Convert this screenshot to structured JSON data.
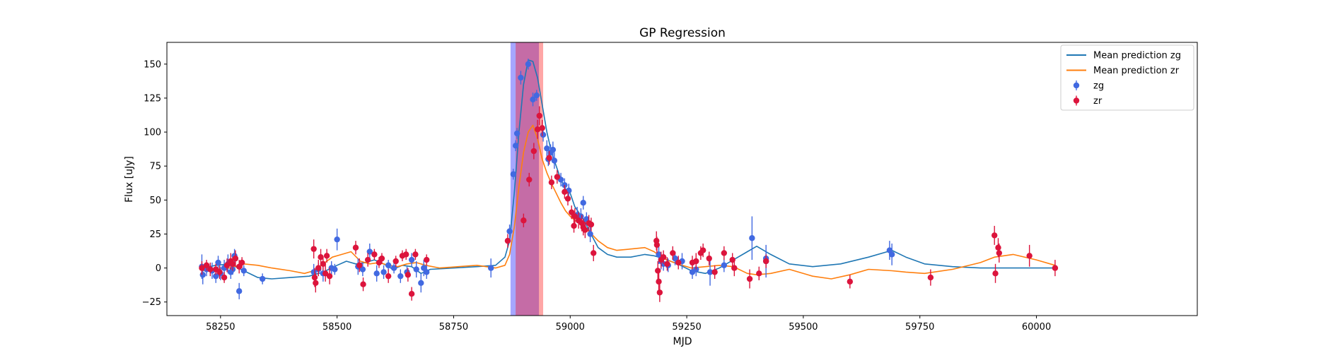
{
  "chart_data": {
    "type": "scatter",
    "title": "GP Regression",
    "xlabel": "MJD",
    "ylabel": "Flux [uJy]",
    "xlim": [
      58135,
      60345
    ],
    "ylim": [
      -35,
      166
    ],
    "xticks": [
      58250,
      58500,
      58750,
      59000,
      59250,
      59500,
      59750,
      60000
    ],
    "yticks": [
      -25,
      0,
      25,
      50,
      75,
      100,
      125,
      150
    ],
    "grid": false,
    "legend_position": "upper right",
    "shaded_regions": [
      {
        "series": "zg",
        "x": [
          58872,
          58933
        ],
        "color": "#0000ff",
        "opacity": 0.35
      },
      {
        "series": "zr",
        "x": [
          58883,
          58942
        ],
        "color": "#ff0000",
        "opacity": 0.35
      }
    ],
    "lines": [
      {
        "name": "Mean prediction zg",
        "color": "#1f77b4",
        "x": [
          58210,
          58240,
          58270,
          58300,
          58330,
          58360,
          58400,
          58440,
          58470,
          58500,
          58520,
          58540,
          58560,
          58580,
          58600,
          58620,
          58640,
          58660,
          58680,
          58700,
          58750,
          58800,
          58840,
          58860,
          58870,
          58880,
          58890,
          58900,
          58910,
          58920,
          58930,
          58940,
          58950,
          58960,
          58970,
          58980,
          58990,
          59000,
          59010,
          59020,
          59030,
          59040,
          59060,
          59080,
          59100,
          59130,
          59160,
          59180,
          59200,
          59230,
          59260,
          59290,
          59320,
          59350,
          59380,
          59400,
          59430,
          59470,
          59520,
          59580,
          59640,
          59690,
          59720,
          59760,
          59820,
          59880,
          59950,
          60010,
          60040
        ],
        "y": [
          0,
          2,
          3,
          -2,
          -7,
          -8,
          -7,
          -6,
          -3,
          2,
          5,
          3,
          4,
          6,
          3,
          -1,
          2,
          1,
          -4,
          -1,
          0,
          1,
          2,
          8,
          20,
          55,
          100,
          135,
          153,
          152,
          140,
          120,
          100,
          85,
          75,
          65,
          58,
          55,
          45,
          40,
          35,
          28,
          15,
          10,
          8,
          8,
          10,
          9,
          7,
          3,
          -2,
          -4,
          0,
          6,
          12,
          16,
          10,
          3,
          1,
          3,
          8,
          13,
          8,
          3,
          1,
          0,
          0,
          0,
          0
        ]
      },
      {
        "name": "Mean prediction zr",
        "color": "#ff7f0e",
        "x": [
          58210,
          58240,
          58270,
          58300,
          58330,
          58360,
          58400,
          58430,
          58450,
          58470,
          58490,
          58510,
          58530,
          58550,
          58570,
          58590,
          58610,
          58630,
          58650,
          58670,
          58690,
          58720,
          58760,
          58800,
          58840,
          58860,
          58870,
          58880,
          58890,
          58900,
          58910,
          58920,
          58930,
          58940,
          58950,
          58960,
          58970,
          58980,
          58990,
          59000,
          59010,
          59020,
          59030,
          59040,
          59060,
          59080,
          59100,
          59130,
          59160,
          59180,
          59200,
          59230,
          59260,
          59290,
          59320,
          59350,
          59380,
          59400,
          59430,
          59470,
          59520,
          59560,
          59600,
          59640,
          59690,
          59720,
          59760,
          59820,
          59880,
          59910,
          59950,
          60000,
          60040
        ],
        "y": [
          -2,
          -1,
          0,
          3,
          2,
          0,
          -2,
          -4,
          -2,
          3,
          8,
          10,
          12,
          5,
          3,
          4,
          2,
          1,
          3,
          4,
          2,
          0,
          1,
          2,
          0,
          2,
          10,
          30,
          60,
          85,
          100,
          105,
          95,
          80,
          70,
          62,
          55,
          48,
          42,
          38,
          35,
          33,
          30,
          27,
          20,
          15,
          13,
          14,
          15,
          12,
          7,
          3,
          0,
          1,
          2,
          1,
          -4,
          -5,
          -4,
          -1,
          -6,
          -8,
          -5,
          -1,
          -2,
          -3,
          -4,
          -1,
          4,
          8,
          10,
          6,
          2
        ]
      }
    ],
    "series": [
      {
        "name": "zg",
        "color": "#4169e1",
        "points": [
          [
            58210,
            1,
            9
          ],
          [
            58212,
            -5,
            7
          ],
          [
            58220,
            -1,
            5
          ],
          [
            58232,
            -2,
            6
          ],
          [
            58240,
            -6,
            5
          ],
          [
            58245,
            4,
            5
          ],
          [
            58250,
            -4,
            5
          ],
          [
            58258,
            0,
            6
          ],
          [
            58266,
            3,
            7
          ],
          [
            58272,
            -3,
            5
          ],
          [
            58276,
            -1,
            4
          ],
          [
            58280,
            9,
            5
          ],
          [
            58290,
            -17,
            6
          ],
          [
            58300,
            -2,
            4
          ],
          [
            58340,
            -8,
            4
          ],
          [
            58450,
            -3,
            6
          ],
          [
            58460,
            -1,
            5
          ],
          [
            58470,
            -4,
            6
          ],
          [
            58488,
            0,
            5
          ],
          [
            58495,
            -1,
            4
          ],
          [
            58500,
            21,
            8
          ],
          [
            58545,
            1,
            6
          ],
          [
            58555,
            -1,
            5
          ],
          [
            58570,
            12,
            6
          ],
          [
            58585,
            -4,
            6
          ],
          [
            58600,
            -3,
            5
          ],
          [
            58610,
            2,
            4
          ],
          [
            58622,
            0,
            4
          ],
          [
            58636,
            -6,
            5
          ],
          [
            58650,
            -3,
            4
          ],
          [
            58660,
            6,
            5
          ],
          [
            58670,
            -1,
            6
          ],
          [
            58680,
            -11,
            7
          ],
          [
            58686,
            0,
            6
          ],
          [
            58692,
            -3,
            5
          ],
          [
            58830,
            0,
            7
          ],
          [
            58870,
            27,
            5
          ],
          [
            58878,
            69,
            4
          ],
          [
            58883,
            90,
            4
          ],
          [
            58886,
            99,
            4
          ],
          [
            58894,
            140,
            5
          ],
          [
            58910,
            150,
            4
          ],
          [
            58920,
            124,
            5
          ],
          [
            58928,
            127,
            4
          ],
          [
            58942,
            98,
            5
          ],
          [
            58950,
            88,
            6
          ],
          [
            58953,
            80,
            5
          ],
          [
            58958,
            85,
            6
          ],
          [
            58963,
            87,
            6
          ],
          [
            58966,
            79,
            6
          ],
          [
            58980,
            65,
            5
          ],
          [
            58988,
            61,
            5
          ],
          [
            58997,
            57,
            5
          ],
          [
            59015,
            39,
            6
          ],
          [
            59023,
            38,
            6
          ],
          [
            59028,
            48,
            5
          ],
          [
            59035,
            36,
            5
          ],
          [
            59043,
            25,
            6
          ],
          [
            59190,
            10,
            7
          ],
          [
            59195,
            5,
            6
          ],
          [
            59200,
            3,
            5
          ],
          [
            59210,
            2,
            5
          ],
          [
            59225,
            7,
            5
          ],
          [
            59240,
            5,
            6
          ],
          [
            59262,
            -3,
            5
          ],
          [
            59270,
            -1,
            5
          ],
          [
            59300,
            -3,
            10
          ],
          [
            59330,
            2,
            5
          ],
          [
            59390,
            22,
            16
          ],
          [
            59420,
            7,
            5
          ],
          [
            59420,
            5,
            12
          ],
          [
            59685,
            13,
            7
          ],
          [
            59690,
            10,
            8
          ]
        ]
      },
      {
        "name": "zr",
        "color": "#dc143c",
        "points": [
          [
            58210,
            0,
            5
          ],
          [
            58220,
            2,
            4
          ],
          [
            58228,
            -1,
            5
          ],
          [
            58240,
            -1,
            4
          ],
          [
            58248,
            -3,
            5
          ],
          [
            58258,
            -7,
            4
          ],
          [
            58264,
            2,
            5
          ],
          [
            58272,
            5,
            6
          ],
          [
            58276,
            3,
            5
          ],
          [
            58282,
            7,
            6
          ],
          [
            58290,
            1,
            5
          ],
          [
            58296,
            4,
            4
          ],
          [
            58450,
            14,
            7
          ],
          [
            58452,
            -7,
            7
          ],
          [
            58454,
            -11,
            7
          ],
          [
            58460,
            0,
            6
          ],
          [
            58465,
            8,
            6
          ],
          [
            58470,
            3,
            5
          ],
          [
            58475,
            -4,
            6
          ],
          [
            58478,
            9,
            5
          ],
          [
            58484,
            -6,
            6
          ],
          [
            58540,
            15,
            5
          ],
          [
            58548,
            2,
            5
          ],
          [
            58556,
            -12,
            5
          ],
          [
            58566,
            6,
            5
          ],
          [
            58580,
            10,
            4
          ],
          [
            58590,
            4,
            4
          ],
          [
            58596,
            7,
            4
          ],
          [
            58610,
            -6,
            5
          ],
          [
            58626,
            5,
            4
          ],
          [
            58640,
            9,
            4
          ],
          [
            58648,
            10,
            4
          ],
          [
            58652,
            -5,
            5
          ],
          [
            58660,
            -19,
            5
          ],
          [
            58668,
            10,
            4
          ],
          [
            58692,
            6,
            4
          ],
          [
            58866,
            20,
            5
          ],
          [
            58900,
            35,
            5
          ],
          [
            58912,
            65,
            5
          ],
          [
            58922,
            86,
            6
          ],
          [
            58930,
            102,
            7
          ],
          [
            58934,
            112,
            7
          ],
          [
            58940,
            103,
            6
          ],
          [
            58955,
            81,
            5
          ],
          [
            58960,
            63,
            5
          ],
          [
            58972,
            67,
            5
          ],
          [
            58988,
            56,
            5
          ],
          [
            58995,
            51,
            5
          ],
          [
            59003,
            41,
            5
          ],
          [
            59008,
            31,
            5
          ],
          [
            59010,
            38,
            6
          ],
          [
            59018,
            35,
            6
          ],
          [
            59025,
            33,
            6
          ],
          [
            59028,
            30,
            6
          ],
          [
            59032,
            28,
            6
          ],
          [
            59040,
            33,
            6
          ],
          [
            59045,
            32,
            5
          ],
          [
            59050,
            11,
            6
          ],
          [
            59185,
            20,
            7
          ],
          [
            59186,
            17,
            6
          ],
          [
            59188,
            -2,
            7
          ],
          [
            59190,
            -10,
            7
          ],
          [
            59192,
            -18,
            7
          ],
          [
            59195,
            6,
            6
          ],
          [
            59200,
            8,
            5
          ],
          [
            59208,
            3,
            5
          ],
          [
            59220,
            11,
            5
          ],
          [
            59232,
            4,
            5
          ],
          [
            59262,
            4,
            5
          ],
          [
            59270,
            5,
            6
          ],
          [
            59280,
            11,
            5
          ],
          [
            59285,
            13,
            5
          ],
          [
            59298,
            7,
            5
          ],
          [
            59310,
            -3,
            5
          ],
          [
            59330,
            11,
            5
          ],
          [
            59348,
            6,
            5
          ],
          [
            59352,
            0,
            6
          ],
          [
            59385,
            -8,
            7
          ],
          [
            59405,
            -4,
            5
          ],
          [
            59420,
            5,
            5
          ],
          [
            59600,
            -10,
            5
          ],
          [
            59773,
            -7,
            6
          ],
          [
            59910,
            24,
            7
          ],
          [
            59912,
            -4,
            7
          ],
          [
            59918,
            15,
            7
          ],
          [
            59920,
            11,
            7
          ],
          [
            59985,
            9,
            8
          ],
          [
            60040,
            0,
            6
          ]
        ]
      }
    ]
  }
}
